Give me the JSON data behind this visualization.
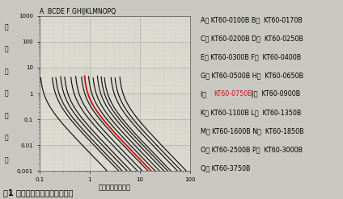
{
  "title": "A  BCDE F GHIJKLMNOPQ",
  "xlabel": "动作电流（安培）",
  "ylabel_chars": [
    "动",
    "作",
    "时",
    "间",
    "（",
    "秒",
    "）"
  ],
  "fig_caption": "图1 动作时间与动作电流的关系",
  "xlim": [
    0.1,
    100
  ],
  "ylim": [
    0.001,
    1000
  ],
  "legend_lines": [
    {
      "text": "A； KT60-0100B B；  KT60-0170B",
      "red": false
    },
    {
      "text": "C； KT60-0200B D；  KT60-0250B",
      "red": false
    },
    {
      "text": "E； KT60-0300B F；  KT60-0400B",
      "red": false
    },
    {
      "text": "G； KT60-0500B H；  KT60-0650B",
      "red": false
    },
    {
      "text_black_pre": "I； ",
      "text_red": "KT60-0750B",
      "text_black_post": " J；  KT60-0900B",
      "red": true
    },
    {
      "text": "K； KT60-1100B L；  KT60-1350B",
      "red": false
    },
    {
      "text": "M； KT60-1600B N；  KT60-1850B",
      "red": false
    },
    {
      "text": "O； KT60-2500B P；  KT60-3000B",
      "red": false
    },
    {
      "text": "Q； KT60-3750B",
      "red": false
    }
  ],
  "n_curves": 17,
  "red_curve_index": 8,
  "bg_color": "#c8c8c0",
  "plot_bg": "#dcdcd0",
  "grid_major_color": "#aaaaaa",
  "grid_minor_color": "#cccccc",
  "curve_color": "#111111",
  "red_color": "#cc1111",
  "curve_hold_currents": [
    0.1,
    0.17,
    0.2,
    0.25,
    0.3,
    0.4,
    0.5,
    0.65,
    0.75,
    0.9,
    1.1,
    1.35,
    1.6,
    1.85,
    2.5,
    3.0,
    3.75
  ]
}
